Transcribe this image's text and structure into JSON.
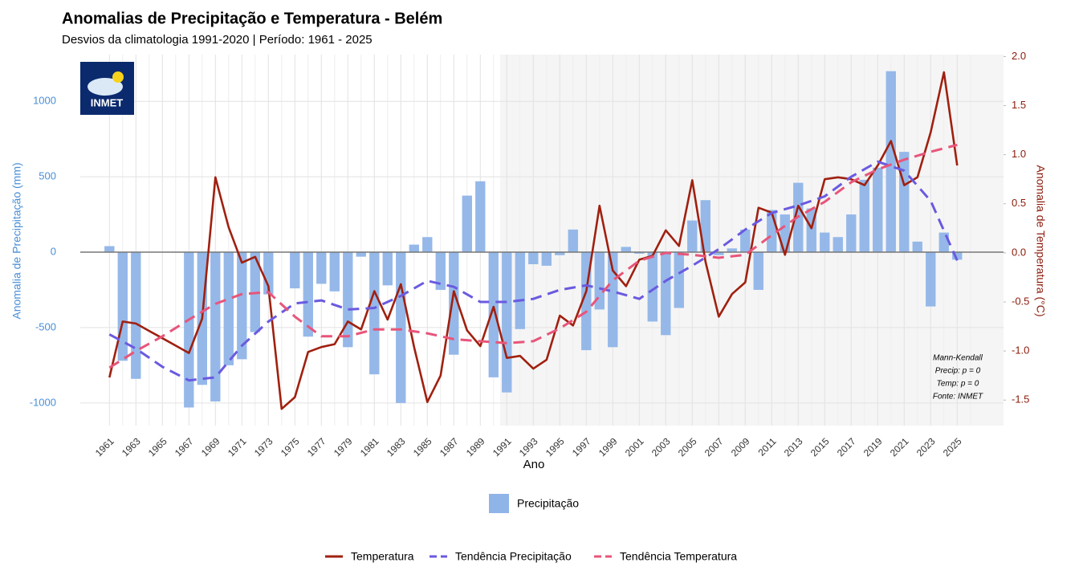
{
  "chart_data": {
    "type": "bar-line",
    "title": "Anomalias de Precipitação e Temperatura - Belém",
    "subtitle": "Desvios da climatologia 1991-2020 | Período: 1961 - 2025",
    "x_label": "Ano",
    "y_label": "Anomalia de Precipitação (mm)",
    "y2_label": "Anomalia de Temperatura (°C)",
    "logo_text": "INMET",
    "annotation": [
      "Mann-Kendall",
      "Precip: p = 0",
      "Temp: p = 0",
      "Fonte: INMET"
    ],
    "climatology_period": [
      1991,
      2020
    ],
    "xlim": [
      1958.8,
      2028.5
    ],
    "ylim": [
      -1150,
      1310
    ],
    "y2lim": [
      -1.76,
      2.02
    ],
    "xticks": [
      1961,
      1963,
      1965,
      1967,
      1969,
      1971,
      1973,
      1975,
      1977,
      1979,
      1981,
      1983,
      1985,
      1987,
      1989,
      1991,
      1993,
      1995,
      1997,
      1999,
      2001,
      2003,
      2005,
      2007,
      2009,
      2011,
      2013,
      2015,
      2017,
      2019,
      2021,
      2023,
      2025
    ],
    "yticks": [
      -1000,
      -500,
      0,
      500,
      1000
    ],
    "y2ticks": [
      {
        "value": -1.5,
        "label": "-1.5"
      },
      {
        "value": -1,
        "label": "-1.0"
      },
      {
        "value": -0.5,
        "label": "-0.5"
      },
      {
        "value": 0,
        "label": "0.0"
      },
      {
        "value": 0.5,
        "label": "0.5"
      },
      {
        "value": 1,
        "label": "1.0"
      },
      {
        "value": 1.5,
        "label": "1.5"
      },
      {
        "value": 2,
        "label": "2.0"
      }
    ],
    "grid": true,
    "x": [
      1961,
      1962,
      1963,
      1964,
      1965,
      1966,
      1967,
      1968,
      1969,
      1970,
      1971,
      1972,
      1973,
      1974,
      1975,
      1976,
      1977,
      1978,
      1979,
      1980,
      1981,
      1982,
      1983,
      1984,
      1985,
      1986,
      1987,
      1988,
      1989,
      1990,
      1991,
      1992,
      1993,
      1994,
      1995,
      1996,
      1997,
      1998,
      1999,
      2000,
      2001,
      2002,
      2003,
      2004,
      2005,
      2006,
      2007,
      2008,
      2009,
      2010,
      2011,
      2012,
      2013,
      2014,
      2015,
      2016,
      2017,
      2018,
      2019,
      2020,
      2021,
      2022,
      2023,
      2024,
      2025
    ],
    "series": [
      {
        "name": "Precipitação",
        "kind": "bar",
        "axis": "y",
        "color": "#8fb4e8",
        "values": [
          40,
          -720,
          -840,
          null,
          null,
          null,
          -1030,
          -880,
          -990,
          -750,
          -710,
          -530,
          -280,
          null,
          -240,
          -560,
          -210,
          -260,
          -630,
          -30,
          -810,
          -220,
          -1000,
          50,
          100,
          -250,
          -680,
          375,
          470,
          -830,
          -930,
          -510,
          -80,
          -90,
          -20,
          150,
          -650,
          -380,
          -630,
          35,
          -10,
          -460,
          -550,
          -370,
          210,
          345,
          -20,
          25,
          150,
          -250,
          280,
          250,
          460,
          290,
          130,
          100,
          250,
          480,
          560,
          1200,
          665,
          70,
          -360,
          130,
          -50
        ]
      },
      {
        "name": "Temperatura",
        "kind": "line",
        "axis": "y2",
        "color": "#a0200f",
        "values": [
          -1.27,
          -0.7,
          -0.72,
          -0.795,
          -0.87,
          -0.945,
          -1.02,
          -0.67,
          0.77,
          0.26,
          -0.1,
          -0.04,
          -0.34,
          -1.59,
          -1.47,
          -1.01,
          -0.96,
          -0.93,
          -0.7,
          -0.78,
          -0.39,
          -0.68,
          -0.32,
          -0.96,
          -1.52,
          -1.25,
          -0.39,
          -0.79,
          -0.95,
          -0.55,
          -1.07,
          -1.05,
          -1.18,
          -1.09,
          -0.64,
          -0.74,
          -0.39,
          0.48,
          -0.18,
          -0.34,
          -0.07,
          -0.03,
          0.23,
          0.07,
          0.74,
          -0.09,
          -0.65,
          -0.42,
          -0.3,
          0.46,
          0.41,
          -0.02,
          0.48,
          0.25,
          0.75,
          0.77,
          0.75,
          0.69,
          0.89,
          1.14,
          0.69,
          0.77,
          1.23,
          1.84,
          0.89
        ]
      },
      {
        "name": "Tendência Precipitação",
        "kind": "dashed",
        "axis": "y",
        "color": "#6a5ae0",
        "x": [
          1961,
          1963,
          1965,
          1967,
          1969,
          1971,
          1973,
          1975,
          1977,
          1979,
          1981,
          1983,
          1985,
          1987,
          1989,
          1991,
          1993,
          1995,
          1997,
          1999,
          2001,
          2003,
          2005,
          2007,
          2009,
          2011,
          2013,
          2015,
          2017,
          2019,
          2021,
          2023,
          2025
        ],
        "values": [
          -545,
          -640,
          -760,
          -850,
          -830,
          -620,
          -460,
          -340,
          -320,
          -380,
          -370,
          -290,
          -190,
          -230,
          -330,
          -330,
          -310,
          -250,
          -220,
          -260,
          -310,
          -190,
          -90,
          20,
          150,
          260,
          310,
          370,
          500,
          600,
          540,
          340,
          -55
        ]
      },
      {
        "name": "Tendência Temperatura",
        "kind": "dashed",
        "axis": "y2",
        "color": "#e8557a",
        "x": [
          1961,
          1963,
          1965,
          1967,
          1969,
          1971,
          1973,
          1975,
          1977,
          1979,
          1981,
          1983,
          1985,
          1987,
          1989,
          1991,
          1993,
          1995,
          1997,
          1999,
          2001,
          2003,
          2005,
          2007,
          2009,
          2011,
          2013,
          2015,
          2017,
          2019,
          2021,
          2023,
          2025
        ],
        "values": [
          -1.17,
          -1.0,
          -0.85,
          -0.68,
          -0.52,
          -0.42,
          -0.4,
          -0.65,
          -0.85,
          -0.85,
          -0.78,
          -0.78,
          -0.82,
          -0.88,
          -0.9,
          -0.92,
          -0.9,
          -0.77,
          -0.6,
          -0.28,
          -0.08,
          0.0,
          -0.02,
          -0.05,
          -0.02,
          0.18,
          0.37,
          0.52,
          0.72,
          0.85,
          0.95,
          1.03,
          1.1
        ]
      }
    ]
  }
}
